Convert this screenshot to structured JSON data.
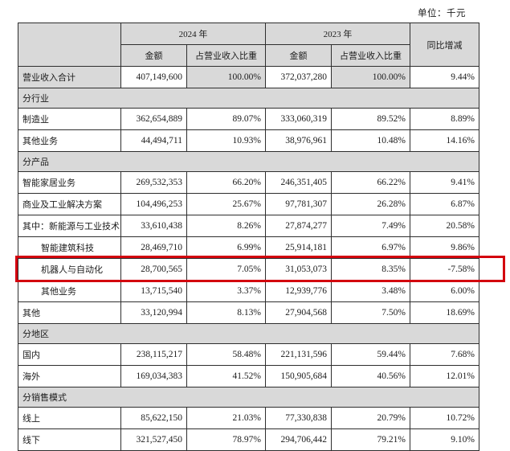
{
  "meta": {
    "unit_label": "单位：千元"
  },
  "colors": {
    "section_bg": "#d9d9d9",
    "highlight_border": "#d3000e",
    "border": "#2e2e2e"
  },
  "table": {
    "header": {
      "year_2024": "2024 年",
      "year_2023": "2023 年",
      "yoy": "同比增减",
      "amount": "金额",
      "pct": "占营业收入比重"
    },
    "rows": [
      {
        "type": "data",
        "label": "营业收入合计",
        "indent": 0,
        "shaded": true,
        "highlight": false,
        "a24": "407,149,600",
        "p24": "100.00%",
        "a23": "372,037,280",
        "p23": "100.00%",
        "yoy": "9.44%"
      },
      {
        "type": "section",
        "label": "分行业"
      },
      {
        "type": "data",
        "label": "制造业",
        "indent": 0,
        "shaded": false,
        "highlight": false,
        "a24": "362,654,889",
        "p24": "89.07%",
        "a23": "333,060,319",
        "p23": "89.52%",
        "yoy": "8.89%"
      },
      {
        "type": "data",
        "label": "其他业务",
        "indent": 0,
        "shaded": false,
        "highlight": false,
        "a24": "44,494,711",
        "p24": "10.93%",
        "a23": "38,976,961",
        "p23": "10.48%",
        "yoy": "14.16%"
      },
      {
        "type": "section",
        "label": "分产品"
      },
      {
        "type": "data",
        "label": "智能家居业务",
        "indent": 0,
        "shaded": false,
        "highlight": false,
        "a24": "269,532,353",
        "p24": "66.20%",
        "a23": "246,351,405",
        "p23": "66.22%",
        "yoy": "9.41%"
      },
      {
        "type": "data",
        "label": "商业及工业解决方案",
        "indent": 0,
        "shaded": false,
        "highlight": false,
        "a24": "104,496,253",
        "p24": "25.67%",
        "a23": "97,781,307",
        "p23": "26.28%",
        "yoy": "6.87%"
      },
      {
        "type": "data",
        "label": "其中：新能源与工业技术",
        "indent": 0,
        "shaded": false,
        "highlight": false,
        "a24": "33,610,438",
        "p24": "8.26%",
        "a23": "27,874,277",
        "p23": "7.49%",
        "yoy": "20.58%"
      },
      {
        "type": "data",
        "label": "智能建筑科技",
        "indent": 1,
        "shaded": false,
        "highlight": false,
        "a24": "28,469,710",
        "p24": "6.99%",
        "a23": "25,914,181",
        "p23": "6.97%",
        "yoy": "9.86%"
      },
      {
        "type": "data",
        "label": "机器人与自动化",
        "indent": 1,
        "shaded": false,
        "highlight": true,
        "a24": "28,700,565",
        "p24": "7.05%",
        "a23": "31,053,073",
        "p23": "8.35%",
        "yoy": "-7.58%"
      },
      {
        "type": "data",
        "label": "其他业务",
        "indent": 1,
        "shaded": false,
        "highlight": false,
        "a24": "13,715,540",
        "p24": "3.37%",
        "a23": "12,939,776",
        "p23": "3.48%",
        "yoy": "6.00%"
      },
      {
        "type": "data",
        "label": "其他",
        "indent": 0,
        "shaded": false,
        "highlight": false,
        "a24": "33,120,994",
        "p24": "8.13%",
        "a23": "27,904,568",
        "p23": "7.50%",
        "yoy": "18.69%"
      },
      {
        "type": "section",
        "label": "分地区"
      },
      {
        "type": "data",
        "label": "国内",
        "indent": 0,
        "shaded": false,
        "highlight": false,
        "a24": "238,115,217",
        "p24": "58.48%",
        "a23": "221,131,596",
        "p23": "59.44%",
        "yoy": "7.68%"
      },
      {
        "type": "data",
        "label": "海外",
        "indent": 0,
        "shaded": false,
        "highlight": false,
        "a24": "169,034,383",
        "p24": "41.52%",
        "a23": "150,905,684",
        "p23": "40.56%",
        "yoy": "12.01%"
      },
      {
        "type": "section",
        "label": "分销售模式"
      },
      {
        "type": "data",
        "label": "线上",
        "indent": 0,
        "shaded": false,
        "highlight": false,
        "a24": "85,622,150",
        "p24": "21.03%",
        "a23": "77,330,838",
        "p23": "20.79%",
        "yoy": "10.72%"
      },
      {
        "type": "data",
        "label": "线下",
        "indent": 0,
        "shaded": false,
        "highlight": false,
        "a24": "321,527,450",
        "p24": "78.97%",
        "a23": "294,706,442",
        "p23": "79.21%",
        "yoy": "9.10%"
      }
    ]
  }
}
